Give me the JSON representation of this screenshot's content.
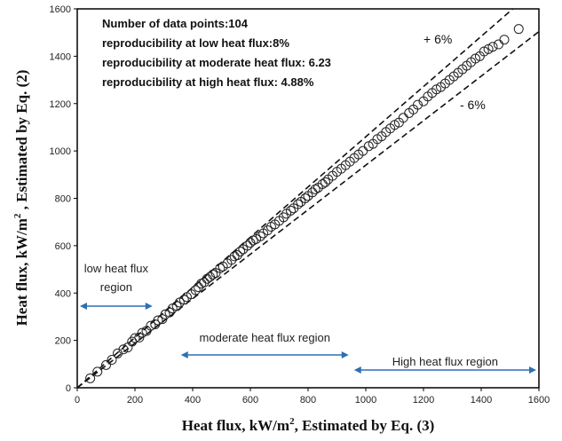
{
  "chart_data": {
    "type": "scatter",
    "xlabel_prefix": "Heat flux, kW/m",
    "xlabel_sup": "2",
    "xlabel_suffix": ",  Estimated by Eq. (3)",
    "ylabel_prefix": "Heat flux,  kW/m",
    "ylabel_sup": "2",
    "ylabel_suffix": " ,  Estimated by Eq. (2)",
    "xlim": [
      0,
      1600
    ],
    "ylim": [
      0,
      1600
    ],
    "x_ticks": [
      "0",
      "200",
      "400",
      "600",
      "800",
      "1000",
      "1200",
      "1400",
      "1600"
    ],
    "y_ticks": [
      "0",
      "200",
      "400",
      "600",
      "800",
      "1000",
      "1200",
      "1400",
      "1600"
    ],
    "grid": false,
    "annotations": [
      "Number of data points:104",
      "reproducibility at low heat flux:8%",
      "reproducibility at moderate heat flux: 6.23",
      "reproducibility at high heat flux: 4.88%"
    ],
    "band_labels": {
      "upper": "+ 6%",
      "lower": "- 6%"
    },
    "regions": [
      {
        "label_lines": [
          "low heat flux",
          "region"
        ],
        "x_range": [
          0,
          270
        ]
      },
      {
        "label_lines": [
          "moderate heat flux region"
        ],
        "x_range": [
          350,
          950
        ]
      },
      {
        "label_lines": [
          "High heat flux region"
        ],
        "x_range": [
          950,
          1600
        ]
      }
    ],
    "reference_lines": [
      {
        "style": "dashed",
        "slope": 1.06
      },
      {
        "style": "dashed",
        "slope": 0.94
      }
    ],
    "points": [
      [
        45,
        40
      ],
      [
        70,
        68
      ],
      [
        100,
        96
      ],
      [
        120,
        118
      ],
      [
        140,
        145
      ],
      [
        160,
        162
      ],
      [
        175,
        170
      ],
      [
        190,
        195
      ],
      [
        200,
        210
      ],
      [
        215,
        212
      ],
      [
        225,
        232
      ],
      [
        240,
        240
      ],
      [
        255,
        262
      ],
      [
        270,
        268
      ],
      [
        280,
        285
      ],
      [
        295,
        290
      ],
      [
        305,
        310
      ],
      [
        320,
        318
      ],
      [
        330,
        335
      ],
      [
        345,
        345
      ],
      [
        355,
        360
      ],
      [
        370,
        372
      ],
      [
        380,
        383
      ],
      [
        395,
        395
      ],
      [
        410,
        412
      ],
      [
        420,
        425
      ],
      [
        430,
        440
      ],
      [
        440,
        445
      ],
      [
        450,
        460
      ],
      [
        460,
        468
      ],
      [
        470,
        478
      ],
      [
        480,
        485
      ],
      [
        495,
        505
      ],
      [
        505,
        512
      ],
      [
        520,
        525
      ],
      [
        535,
        540
      ],
      [
        545,
        555
      ],
      [
        555,
        560
      ],
      [
        565,
        575
      ],
      [
        575,
        585
      ],
      [
        590,
        600
      ],
      [
        600,
        612
      ],
      [
        610,
        622
      ],
      [
        620,
        628
      ],
      [
        635,
        640
      ],
      [
        645,
        652
      ],
      [
        660,
        665
      ],
      [
        672,
        680
      ],
      [
        685,
        690
      ],
      [
        700,
        705
      ],
      [
        715,
        720
      ],
      [
        725,
        735
      ],
      [
        740,
        748
      ],
      [
        750,
        758
      ],
      [
        765,
        775
      ],
      [
        775,
        785
      ],
      [
        790,
        800
      ],
      [
        800,
        810
      ],
      [
        815,
        825
      ],
      [
        825,
        838
      ],
      [
        835,
        845
      ],
      [
        850,
        860
      ],
      [
        860,
        868
      ],
      [
        870,
        880
      ],
      [
        885,
        895
      ],
      [
        900,
        912
      ],
      [
        915,
        925
      ],
      [
        930,
        940
      ],
      [
        945,
        955
      ],
      [
        960,
        970
      ],
      [
        975,
        985
      ],
      [
        990,
        1000
      ],
      [
        1010,
        1020
      ],
      [
        1025,
        1030
      ],
      [
        1040,
        1050
      ],
      [
        1055,
        1062
      ],
      [
        1070,
        1080
      ],
      [
        1085,
        1095
      ],
      [
        1100,
        1110
      ],
      [
        1115,
        1120
      ],
      [
        1130,
        1140
      ],
      [
        1150,
        1160
      ],
      [
        1165,
        1175
      ],
      [
        1180,
        1195
      ],
      [
        1200,
        1210
      ],
      [
        1215,
        1230
      ],
      [
        1230,
        1245
      ],
      [
        1245,
        1260
      ],
      [
        1260,
        1270
      ],
      [
        1275,
        1285
      ],
      [
        1290,
        1300
      ],
      [
        1305,
        1315
      ],
      [
        1320,
        1330
      ],
      [
        1335,
        1345
      ],
      [
        1350,
        1360
      ],
      [
        1365,
        1375
      ],
      [
        1380,
        1390
      ],
      [
        1395,
        1400
      ],
      [
        1410,
        1420
      ],
      [
        1425,
        1430
      ],
      [
        1440,
        1440
      ],
      [
        1460,
        1450
      ],
      [
        1480,
        1470
      ],
      [
        1530,
        1515
      ]
    ]
  },
  "colors": {
    "arrow": "#2e6fb3",
    "marker": "#222222",
    "axis": "#000000"
  }
}
